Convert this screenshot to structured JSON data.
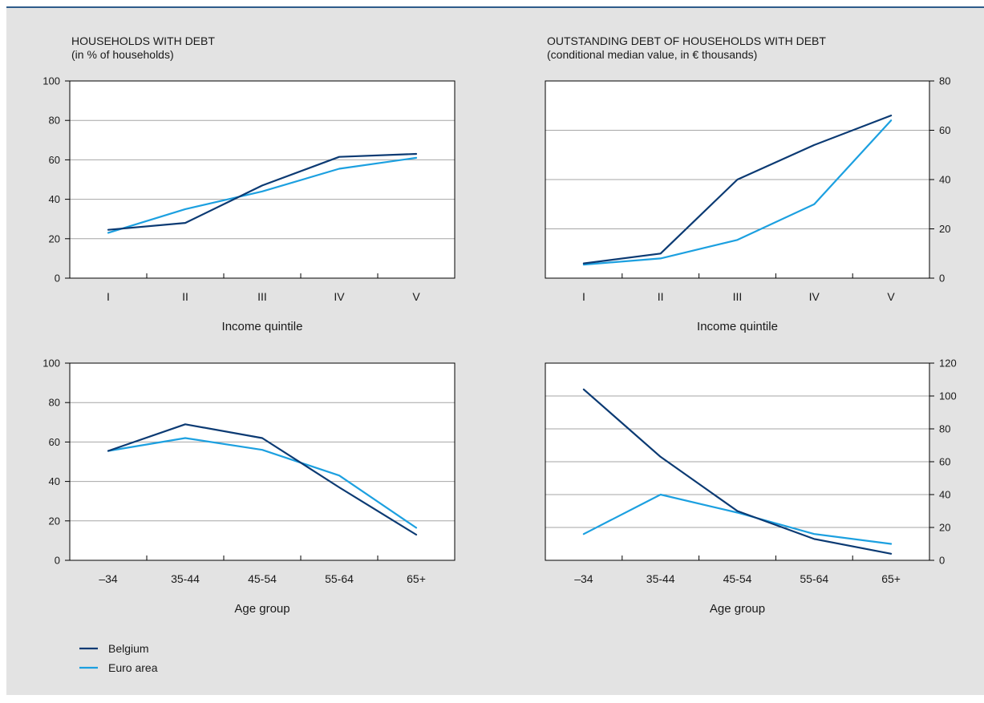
{
  "colors": {
    "belgium": "#0b3a73",
    "euro_area": "#1ca0e0",
    "grid": "#a6a6a6",
    "plot_bg": "#ffffff",
    "panel_bg": "#e3e3e3"
  },
  "legend": [
    {
      "name": "Belgium",
      "color": "#0b3a73"
    },
    {
      "name": "Euro area",
      "color": "#1ca0e0"
    }
  ],
  "chart_data": [
    {
      "type": "line",
      "title": "HOUSEHOLDS WITH DEBT",
      "subtitle": "(in % of households)",
      "xlabel": "Income quintile",
      "ylabel": "",
      "categories": [
        "I",
        "II",
        "III",
        "IV",
        "V"
      ],
      "ylim": [
        0,
        100
      ],
      "yticks": [
        0,
        20,
        40,
        60,
        80,
        100
      ],
      "yaxis_side": "left",
      "grid": true,
      "series": [
        {
          "name": "Belgium",
          "values": [
            24.5,
            28,
            47,
            61.5,
            63
          ]
        },
        {
          "name": "Euro area",
          "values": [
            23,
            35,
            44,
            55.5,
            61
          ]
        }
      ]
    },
    {
      "type": "line",
      "title": "OUTSTANDING DEBT OF HOUSEHOLDS WITH DEBT",
      "subtitle": "(conditional median value, in € thousands)",
      "xlabel": "Income quintile",
      "ylabel": "",
      "categories": [
        "I",
        "II",
        "III",
        "IV",
        "V"
      ],
      "ylim": [
        0,
        80
      ],
      "yticks": [
        0,
        20,
        40,
        60,
        80
      ],
      "yaxis_side": "right",
      "grid": true,
      "series": [
        {
          "name": "Belgium",
          "values": [
            6,
            10,
            40,
            54,
            66
          ]
        },
        {
          "name": "Euro area",
          "values": [
            5.5,
            8,
            15.5,
            30,
            64
          ]
        }
      ]
    },
    {
      "type": "line",
      "title": "",
      "subtitle": "",
      "xlabel": "Age group",
      "ylabel": "",
      "categories": [
        "–34",
        "35-44",
        "45-54",
        "55-64",
        "65+"
      ],
      "ylim": [
        0,
        100
      ],
      "yticks": [
        0,
        20,
        40,
        60,
        80,
        100
      ],
      "yaxis_side": "left",
      "grid": true,
      "series": [
        {
          "name": "Belgium",
          "values": [
            55.5,
            69,
            62,
            37,
            13
          ]
        },
        {
          "name": "Euro area",
          "values": [
            55.5,
            62,
            56,
            43,
            16.5
          ]
        }
      ]
    },
    {
      "type": "line",
      "title": "",
      "subtitle": "",
      "xlabel": "Age group",
      "ylabel": "",
      "categories": [
        "–34",
        "35-44",
        "45-54",
        "55-64",
        "65+"
      ],
      "ylim": [
        0,
        120
      ],
      "yticks": [
        0,
        20,
        40,
        60,
        80,
        100,
        120
      ],
      "yaxis_side": "right",
      "grid": true,
      "series": [
        {
          "name": "Belgium",
          "values": [
            104,
            63,
            30,
            13,
            4
          ]
        },
        {
          "name": "Euro area",
          "values": [
            16,
            40,
            29,
            16,
            10
          ]
        }
      ]
    }
  ]
}
